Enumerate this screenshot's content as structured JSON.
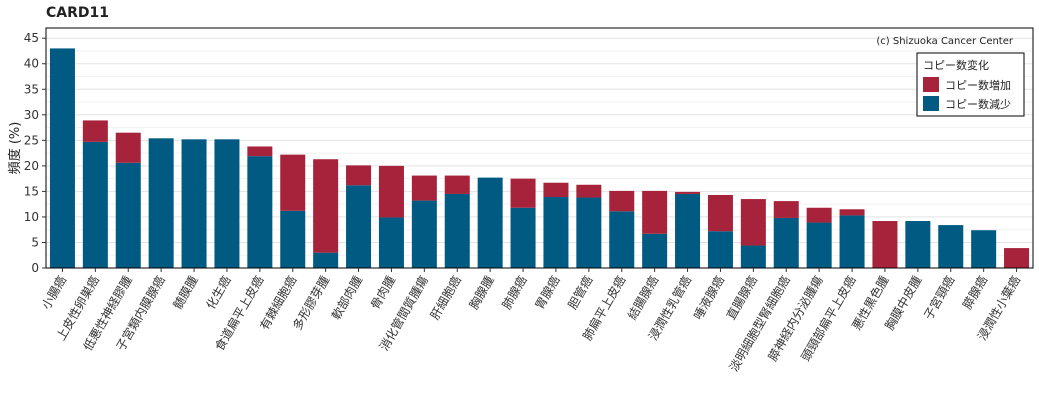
{
  "chart_data": {
    "type": "bar",
    "stacked": true,
    "title": "CARD11",
    "credit": "(c) Shizuoka Cancer Center",
    "xlabel": "",
    "ylabel": "頻度 (%)",
    "ylim": [
      0,
      47
    ],
    "yticks": [
      0,
      5,
      10,
      15,
      20,
      25,
      30,
      35,
      40,
      45
    ],
    "grid": true,
    "legend": {
      "title": "コピー数変化",
      "placement": "top-right",
      "items": [
        {
          "label": "コピー数増加",
          "color": "#A6233B"
        },
        {
          "label": "コピー数減少",
          "color": "#005A82"
        }
      ]
    },
    "categories": [
      "小腸癌",
      "上皮性卵巣癌",
      "低悪性神経膠腫",
      "子宮類内膜腺癌",
      "髄膜腫",
      "化生癌",
      "食道扁平上皮癌",
      "有棘細胞癌",
      "多形膠芽腫",
      "軟部肉腫",
      "骨肉腫",
      "消化管間質腫瘍",
      "肝細胞癌",
      "胸腺腫",
      "肺腺癌",
      "胃腺癌",
      "胆管癌",
      "肺扁平上皮癌",
      "結腸腺癌",
      "浸潤性乳管癌",
      "唾液腺癌",
      "直腸腺癌",
      "淡明細胞型腎細胞癌",
      "膵神経内分泌腫瘍",
      "頭頸部扁平上皮癌",
      "悪性黒色腫",
      "胸膜中皮腫",
      "子宮頸癌",
      "膵腺癌",
      "浸潤性小葉癌"
    ],
    "series": [
      {
        "name": "コピー数減少",
        "color": "#005A82",
        "values": [
          43.0,
          24.7,
          20.6,
          25.4,
          25.2,
          25.2,
          21.9,
          11.2,
          3.0,
          16.2,
          9.9,
          13.2,
          14.5,
          17.7,
          11.8,
          13.9,
          13.8,
          11.1,
          6.7,
          14.5,
          7.2,
          4.4,
          9.8,
          8.9,
          10.3,
          0,
          9.2,
          8.4,
          7.4,
          0
        ]
      },
      {
        "name": "コピー数増加",
        "color": "#A6233B",
        "values": [
          0,
          4.2,
          5.9,
          0,
          0,
          0,
          1.9,
          11.0,
          18.3,
          3.9,
          10.1,
          4.9,
          3.6,
          0,
          5.7,
          2.8,
          2.5,
          4.0,
          8.4,
          0.4,
          7.1,
          9.1,
          3.3,
          2.9,
          1.2,
          9.2,
          0,
          0,
          0,
          3.9
        ]
      }
    ]
  }
}
